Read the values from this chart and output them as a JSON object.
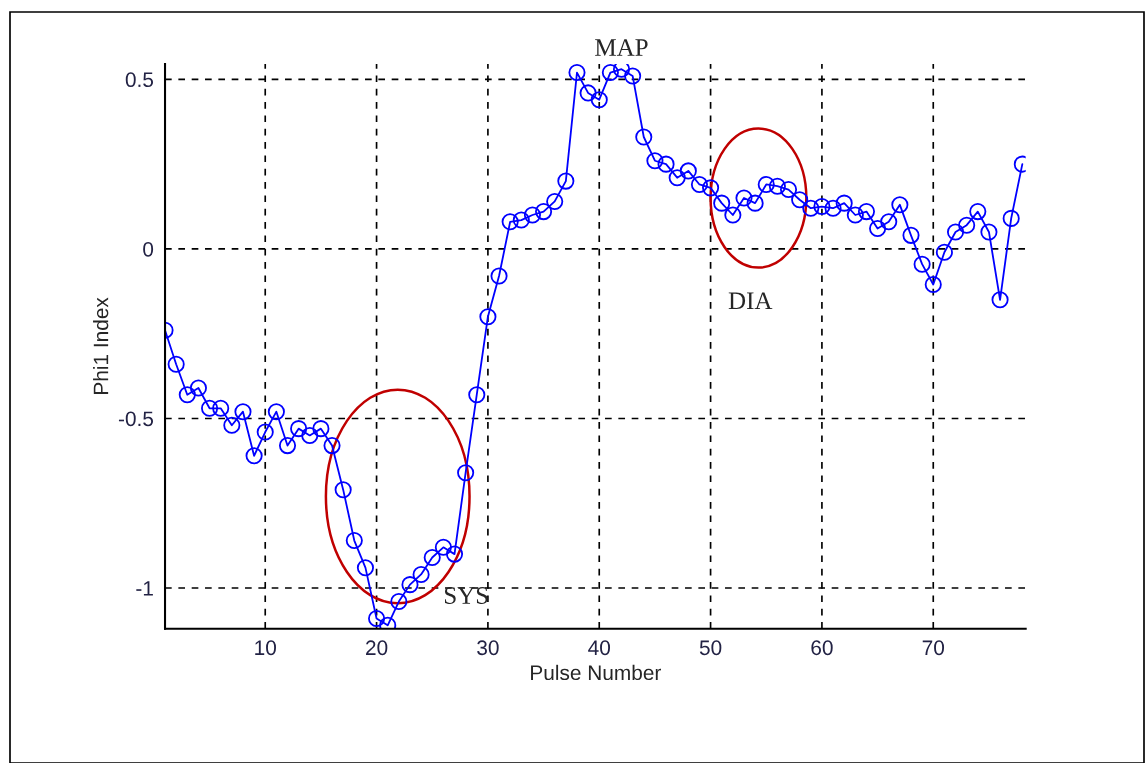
{
  "chart_data": {
    "type": "line",
    "xlabel": "Pulse Number",
    "ylabel": "Phi1 Index",
    "x": [
      1,
      2,
      3,
      4,
      5,
      6,
      7,
      8,
      9,
      10,
      11,
      12,
      13,
      14,
      15,
      16,
      17,
      18,
      19,
      20,
      21,
      22,
      23,
      24,
      25,
      26,
      27,
      28,
      29,
      30,
      31,
      32,
      33,
      34,
      35,
      36,
      37,
      38,
      39,
      40,
      41,
      42,
      43,
      44,
      45,
      46,
      47,
      48,
      49,
      50,
      51,
      52,
      53,
      54,
      55,
      56,
      57,
      58,
      59,
      60,
      61,
      62,
      63,
      64,
      65,
      66,
      67,
      68,
      69,
      70,
      71,
      72,
      73,
      74,
      75,
      76,
      77,
      78
    ],
    "series": [
      {
        "color": "#0000ff",
        "values": [
          -0.24,
          -0.34,
          -0.43,
          -0.41,
          -0.47,
          -0.47,
          -0.52,
          -0.48,
          -0.61,
          -0.54,
          -0.48,
          -0.58,
          -0.53,
          -0.55,
          -0.53,
          -0.58,
          -0.71,
          -0.86,
          -0.94,
          -1.09,
          -1.11,
          -1.04,
          -0.99,
          -0.96,
          -0.91,
          -0.88,
          -0.9,
          -0.66,
          -0.43,
          -0.2,
          -0.08,
          0.08,
          0.085,
          0.1,
          0.11,
          0.14,
          0.2,
          0.52,
          0.46,
          0.44,
          0.52,
          0.53,
          0.51,
          0.33,
          0.26,
          0.25,
          0.21,
          0.23,
          0.19,
          0.18,
          0.135,
          0.1,
          0.15,
          0.135,
          0.19,
          0.185,
          0.175,
          0.145,
          0.12,
          0.125,
          0.12,
          0.135,
          0.1,
          0.11,
          0.06,
          0.08,
          0.13,
          0.04,
          -0.045,
          -0.105,
          -0.01,
          0.05,
          0.07,
          0.11,
          0.05,
          -0.15,
          0.09,
          0.25
        ]
      }
    ],
    "xlim": [
      1,
      78.3
    ],
    "ylim": [
      -1.12,
      0.545
    ],
    "xticks": [
      10,
      20,
      30,
      40,
      50,
      60,
      70
    ],
    "yticks": [
      -1,
      -0.5,
      0,
      0.5
    ],
    "grid": true,
    "marker": "circle",
    "line_style": "solid",
    "legend": false,
    "annotations": [
      {
        "text": "MAP",
        "x": 42,
        "y": 0.53
      },
      "SYS",
      "DIA"
    ]
  }
}
